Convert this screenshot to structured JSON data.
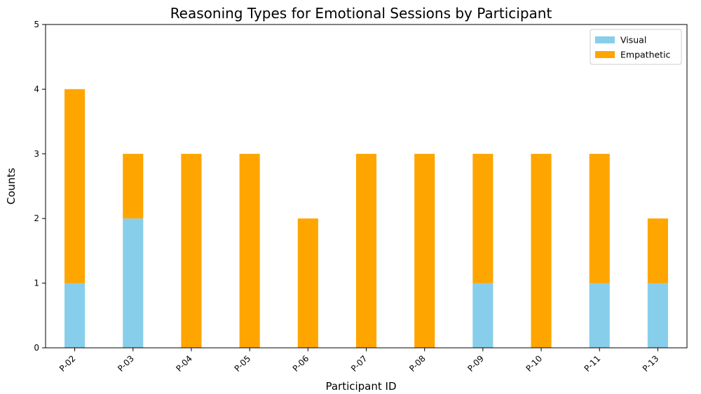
{
  "chart_data": {
    "type": "bar",
    "stacked": true,
    "title": "Reasoning Types for Emotional Sessions by Participant",
    "xlabel": "Participant ID",
    "ylabel": "Counts",
    "categories": [
      "P-02",
      "P-03",
      "P-04",
      "P-05",
      "P-06",
      "P-07",
      "P-08",
      "P-09",
      "P-10",
      "P-11",
      "P-13"
    ],
    "series": [
      {
        "name": "Visual",
        "color": "#87ceeb",
        "values": [
          1,
          2,
          0,
          0,
          0,
          0,
          0,
          1,
          0,
          1,
          1
        ]
      },
      {
        "name": "Empathetic",
        "color": "#ffa500",
        "values": [
          3,
          1,
          3,
          3,
          2,
          3,
          3,
          2,
          3,
          2,
          1
        ]
      }
    ],
    "ylim": [
      0,
      5
    ],
    "yticks": [
      0,
      1,
      2,
      3,
      4,
      5
    ],
    "grid": false,
    "legend_position": "top-right",
    "xtick_rotation": 45
  }
}
